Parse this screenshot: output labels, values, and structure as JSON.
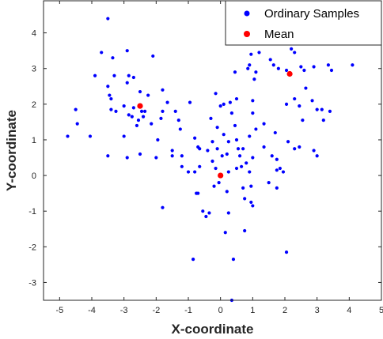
{
  "chart_data": {
    "type": "scatter",
    "title": "",
    "xlabel": "X-coordinate",
    "ylabel": "Y-coordinate",
    "xlim": [
      -5.5,
      5
    ],
    "ylim": [
      -3.5,
      4.9
    ],
    "xticks": [
      -5,
      -4,
      -3,
      -2,
      -1,
      0,
      1,
      2,
      3,
      4,
      5
    ],
    "yticks": [
      -3,
      -2,
      -1,
      0,
      1,
      2,
      3,
      4
    ],
    "grid": false,
    "legend_position": "top-right",
    "series": [
      {
        "name": "Ordinary Samples",
        "color": "#0000ff",
        "points": [
          [
            -3.5,
            4.4
          ],
          [
            -2.9,
            3.5
          ],
          [
            -3.7,
            3.45
          ],
          [
            -3.35,
            3.3
          ],
          [
            -2.1,
            3.35
          ],
          [
            -3.9,
            2.8
          ],
          [
            -3.3,
            2.8
          ],
          [
            -2.85,
            2.8
          ],
          [
            -2.7,
            2.75
          ],
          [
            -2.9,
            2.6
          ],
          [
            -2.5,
            2.35
          ],
          [
            -3.5,
            2.5
          ],
          [
            -3.45,
            2.25
          ],
          [
            -3.4,
            2.15
          ],
          [
            -2.25,
            2.25
          ],
          [
            -1.8,
            2.4
          ],
          [
            -3.0,
            1.95
          ],
          [
            -2.7,
            1.9
          ],
          [
            -3.4,
            1.85
          ],
          [
            -3.25,
            1.8
          ],
          [
            -2.45,
            1.8
          ],
          [
            -2.35,
            1.8
          ],
          [
            -2.4,
            1.65
          ],
          [
            -2.85,
            1.7
          ],
          [
            -2.75,
            1.65
          ],
          [
            -2.55,
            1.55
          ],
          [
            -2.6,
            1.4
          ],
          [
            -2.15,
            1.45
          ],
          [
            -1.65,
            2.05
          ],
          [
            -1.8,
            1.8
          ],
          [
            -1.85,
            1.6
          ],
          [
            -4.5,
            1.85
          ],
          [
            -4.45,
            1.45
          ],
          [
            -4.75,
            1.1
          ],
          [
            -4.05,
            1.1
          ],
          [
            -1.4,
            1.8
          ],
          [
            -1.3,
            1.55
          ],
          [
            -1.25,
            1.3
          ],
          [
            -3.0,
            1.1
          ],
          [
            -1.95,
            1.0
          ],
          [
            -1.5,
            0.7
          ],
          [
            -1.5,
            0.55
          ],
          [
            -2.5,
            0.6
          ],
          [
            -3.5,
            0.55
          ],
          [
            -2.9,
            0.5
          ],
          [
            -2.0,
            0.5
          ],
          [
            -1.2,
            0.55
          ],
          [
            -0.95,
            2.05
          ],
          [
            -0.8,
            1.05
          ],
          [
            -0.7,
            0.8
          ],
          [
            -0.65,
            0.75
          ],
          [
            -1.2,
            0.25
          ],
          [
            -1.0,
            0.1
          ],
          [
            -0.8,
            0.1
          ],
          [
            -0.65,
            0.25
          ],
          [
            -0.7,
            -0.5
          ],
          [
            -0.75,
            -0.5
          ],
          [
            -1.8,
            -0.9
          ],
          [
            -0.55,
            -1.0
          ],
          [
            -0.45,
            -1.15
          ],
          [
            -0.35,
            -1.05
          ],
          [
            -0.85,
            -2.35
          ],
          [
            -0.4,
            0.7
          ],
          [
            -0.3,
            1.6
          ],
          [
            -0.25,
            0.95
          ],
          [
            -0.1,
            1.35
          ],
          [
            -0.1,
            0.75
          ],
          [
            0.05,
            0.55
          ],
          [
            0.1,
            1.15
          ],
          [
            0.2,
            0.6
          ],
          [
            0.25,
            0.95
          ],
          [
            0.25,
            0.1
          ],
          [
            -0.15,
            0.2
          ],
          [
            -0.25,
            0.4
          ],
          [
            -0.2,
            -0.3
          ],
          [
            -0.05,
            -0.2
          ],
          [
            0.2,
            -0.45
          ],
          [
            0.25,
            -1.05
          ],
          [
            0.15,
            -1.6
          ],
          [
            0.4,
            -2.35
          ],
          [
            0.35,
            -3.5
          ],
          [
            -0.15,
            2.3
          ],
          [
            0.0,
            1.95
          ],
          [
            0.1,
            2.0
          ],
          [
            0.3,
            2.05
          ],
          [
            0.35,
            1.75
          ],
          [
            0.5,
            2.15
          ],
          [
            0.45,
            1.4
          ],
          [
            0.5,
            1.0
          ],
          [
            0.55,
            0.75
          ],
          [
            0.7,
            0.75
          ],
          [
            0.6,
            0.55
          ],
          [
            0.65,
            0.25
          ],
          [
            0.5,
            0.2
          ],
          [
            0.8,
            0.35
          ],
          [
            0.9,
            0.1
          ],
          [
            0.7,
            -0.35
          ],
          [
            0.75,
            -0.65
          ],
          [
            0.95,
            -0.75
          ],
          [
            1.0,
            -0.85
          ],
          [
            0.95,
            -0.3
          ],
          [
            1.0,
            0.5
          ],
          [
            0.9,
            1.1
          ],
          [
            1.0,
            1.75
          ],
          [
            1.0,
            2.1
          ],
          [
            1.05,
            2.7
          ],
          [
            1.1,
            2.9
          ],
          [
            1.2,
            3.45
          ],
          [
            0.9,
            3.1
          ],
          [
            0.95,
            3.4
          ],
          [
            0.9,
            3.75
          ],
          [
            0.7,
            4.0
          ],
          [
            0.35,
            3.75
          ],
          [
            0.85,
            3.0
          ],
          [
            0.75,
            -1.55
          ],
          [
            0.45,
            2.9
          ],
          [
            1.55,
            3.25
          ],
          [
            1.65,
            3.1
          ],
          [
            1.8,
            3.0
          ],
          [
            2.05,
            2.95
          ],
          [
            2.2,
            3.55
          ],
          [
            2.3,
            3.45
          ],
          [
            2.9,
            3.05
          ],
          [
            2.5,
            3.05
          ],
          [
            2.65,
            2.45
          ],
          [
            2.3,
            2.15
          ],
          [
            2.45,
            1.95
          ],
          [
            2.05,
            2.0
          ],
          [
            2.85,
            2.1
          ],
          [
            3.15,
            1.85
          ],
          [
            3.2,
            1.55
          ],
          [
            2.55,
            1.55
          ],
          [
            3.0,
            1.85
          ],
          [
            3.4,
            1.8
          ],
          [
            3.45,
            2.95
          ],
          [
            4.1,
            3.1
          ],
          [
            3.35,
            3.1
          ],
          [
            2.6,
            2.95
          ],
          [
            1.1,
            1.3
          ],
          [
            1.35,
            1.45
          ],
          [
            1.7,
            1.2
          ],
          [
            1.35,
            0.8
          ],
          [
            1.6,
            0.55
          ],
          [
            1.75,
            0.45
          ],
          [
            1.75,
            0.15
          ],
          [
            1.95,
            0.1
          ],
          [
            1.75,
            -0.35
          ],
          [
            1.85,
            0.2
          ],
          [
            2.1,
            0.95
          ],
          [
            2.3,
            0.75
          ],
          [
            2.45,
            0.8
          ],
          [
            1.5,
            -0.2
          ],
          [
            2.9,
            0.7
          ],
          [
            3.0,
            0.55
          ],
          [
            2.05,
            -2.15
          ]
        ]
      },
      {
        "name": "Mean",
        "color": "#ff0000",
        "points": [
          [
            -2.5,
            1.95
          ],
          [
            0.0,
            0.0
          ],
          [
            2.15,
            2.85
          ]
        ]
      }
    ]
  }
}
